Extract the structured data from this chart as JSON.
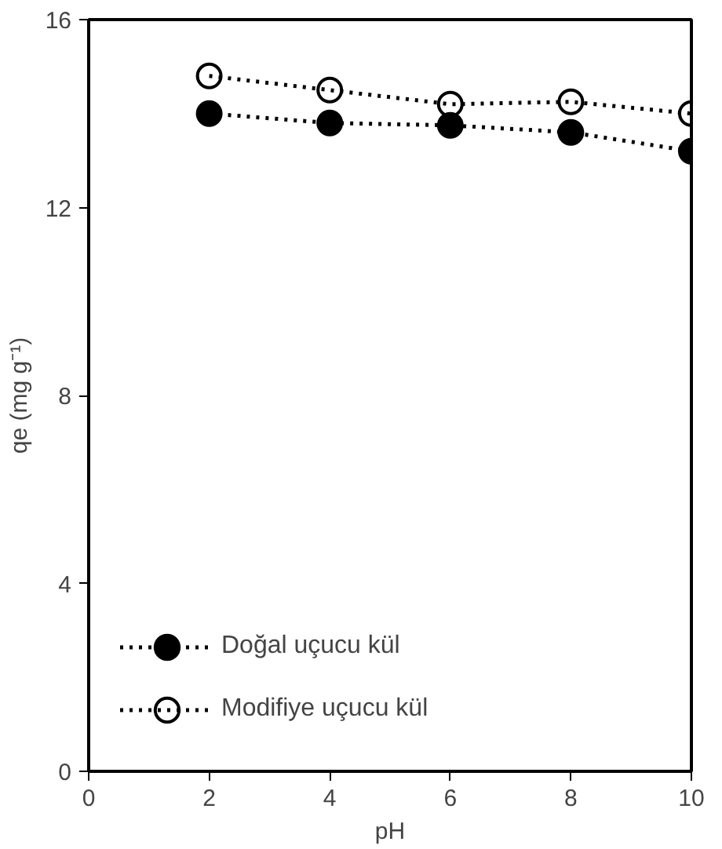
{
  "chart_data": {
    "type": "line",
    "xlabel": "pH",
    "ylabel": "qe (mg g⁻¹)",
    "x": [
      2,
      4,
      6,
      8,
      10
    ],
    "series": [
      {
        "name": "Doğal uçucu kül",
        "color": "#000000",
        "marker": "circle",
        "values": [
          14.0,
          13.8,
          13.75,
          13.6,
          13.2
        ]
      },
      {
        "name": "Modifiye uçucu kül",
        "color": "#000000",
        "marker": "circle_open",
        "values": [
          14.8,
          14.5,
          14.2,
          14.25,
          14.0
        ]
      }
    ],
    "xlim": [
      0,
      10
    ],
    "ylim": [
      0,
      16
    ],
    "xticks": [
      0,
      2,
      4,
      6,
      8,
      10
    ],
    "yticks": [
      0,
      4,
      8,
      12,
      16
    ],
    "grid": false,
    "legend": "bottom left",
    "line_style": "dotted"
  }
}
